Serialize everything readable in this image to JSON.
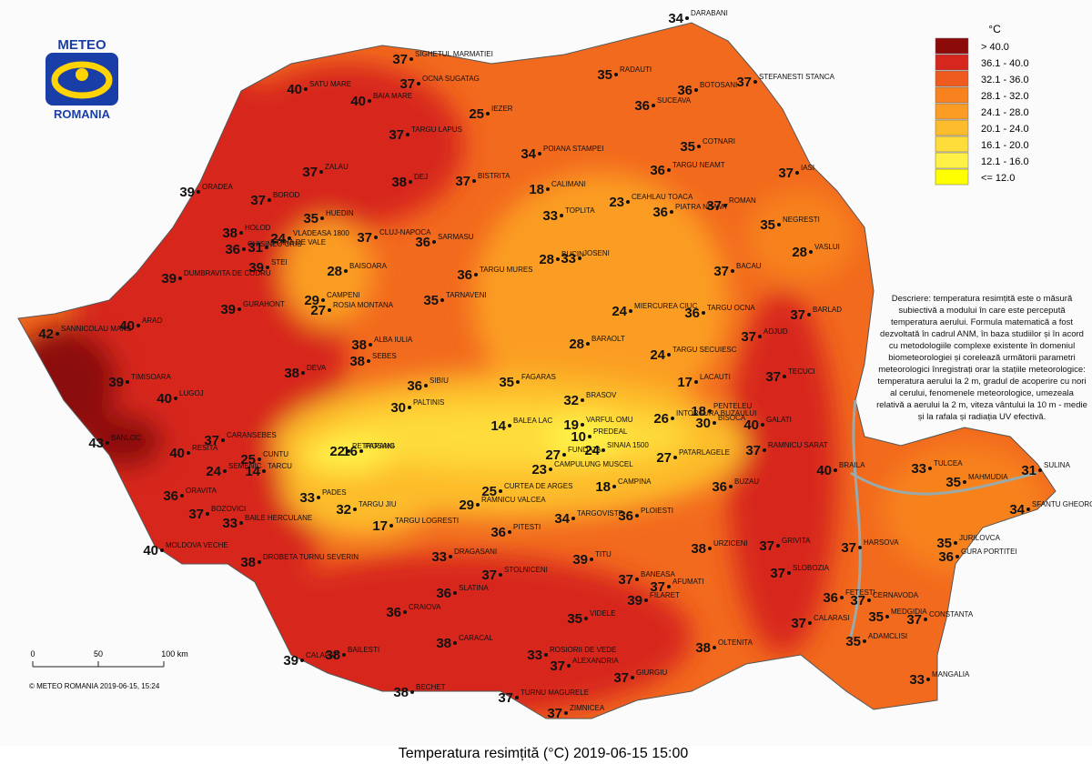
{
  "logo": {
    "line1": "METEO",
    "line2": "ROMANIA"
  },
  "legend": {
    "unit": "°C",
    "items": [
      {
        "label": "> 40.0",
        "color": "#8c0a0a"
      },
      {
        "label": "36.1 - 40.0",
        "color": "#d7261e"
      },
      {
        "label": "32.1 - 36.0",
        "color": "#ef5a1e"
      },
      {
        "label": "28.1 - 32.0",
        "color": "#f7821f"
      },
      {
        "label": "24.1 - 28.0",
        "color": "#fb9d24"
      },
      {
        "label": "20.1 - 24.0",
        "color": "#fdbc2c"
      },
      {
        "label": "16.1 - 20.0",
        "color": "#fedc3a"
      },
      {
        "label": "12.1 - 16.0",
        "color": "#fff046"
      },
      {
        "label": "<= 12.0",
        "color": "#ffff00"
      }
    ]
  },
  "stations": [
    {
      "name": "DARABANI",
      "value": 34
    },
    {
      "name": "SIGHETUL MARMATIEI",
      "value": 37
    },
    {
      "name": "STEFANESTI STANCA",
      "value": 37
    },
    {
      "name": "SATU MARE",
      "value": 40
    },
    {
      "name": "OCNA SUGATAG",
      "value": 37
    },
    {
      "name": "RADAUTI",
      "value": 35
    },
    {
      "name": "BAIA MARE",
      "value": 40
    },
    {
      "name": "BOTOSANI",
      "value": 36
    },
    {
      "name": "IEZER",
      "value": 25
    },
    {
      "name": "SUCEAVA",
      "value": 36
    },
    {
      "name": "TARGU LAPUS",
      "value": 37
    },
    {
      "name": "COTNARI",
      "value": 35
    },
    {
      "name": "POIANA STAMPEI",
      "value": 34
    },
    {
      "name": "ZALAU",
      "value": 37
    },
    {
      "name": "TARGU NEAMT",
      "value": 36
    },
    {
      "name": "IASI",
      "value": 37
    },
    {
      "name": "BISTRITA",
      "value": 37
    },
    {
      "name": "ORADEA",
      "value": 39
    },
    {
      "name": "DEJ",
      "value": 38
    },
    {
      "name": "CALIMANI",
      "value": 18
    },
    {
      "name": "BOROD",
      "value": 37
    },
    {
      "name": "ROMAN",
      "value": 37
    },
    {
      "name": "PIATRA NEAMT",
      "value": 36
    },
    {
      "name": "CEAHLAU TOACA",
      "value": 23
    },
    {
      "name": "VLADEASA 1800",
      "value": 24
    },
    {
      "name": "HUEDIN",
      "value": 35
    },
    {
      "name": "TOPLITA",
      "value": 33
    },
    {
      "name": "NEGRESTI",
      "value": 35
    },
    {
      "name": "HOLOD",
      "value": 38
    },
    {
      "name": "CLUJ-NAPOCA",
      "value": 37
    },
    {
      "name": "SARMASU",
      "value": 36
    },
    {
      "name": "STANA DE VALE",
      "value": 31
    },
    {
      "name": "BUCIN",
      "value": 28
    },
    {
      "name": "JOSENI",
      "value": 33
    },
    {
      "name": "VASLUI",
      "value": 28
    },
    {
      "name": "CHISINEU CRIS",
      "value": 36
    },
    {
      "name": "STEI",
      "value": 39
    },
    {
      "name": "DUMBRAVITA DE CODRU",
      "value": 39
    },
    {
      "name": "BAISOARA",
      "value": 28
    },
    {
      "name": "TARGU MURES",
      "value": 36
    },
    {
      "name": "BACAU",
      "value": 37
    },
    {
      "name": "CAMPENI",
      "value": 29
    },
    {
      "name": "ROSIA MONTANA",
      "value": 27
    },
    {
      "name": "GURAHONT",
      "value": 39
    },
    {
      "name": "TARNAVENI",
      "value": 35
    },
    {
      "name": "MIERCUREA CIUC",
      "value": 24
    },
    {
      "name": "TARGU OCNA",
      "value": 36
    },
    {
      "name": "BARLAD",
      "value": 37
    },
    {
      "name": "SANNICOLAU MARE",
      "value": 42
    },
    {
      "name": "ARAD",
      "value": 40
    },
    {
      "name": "ALBA IULIA",
      "value": 38
    },
    {
      "name": "SEBES",
      "value": 38
    },
    {
      "name": "BARAOLT",
      "value": 28
    },
    {
      "name": "TARGU SECUIESC",
      "value": 24
    },
    {
      "name": "ADJUD",
      "value": 37
    },
    {
      "name": "DEVA",
      "value": 38
    },
    {
      "name": "TIMISOARA",
      "value": 39
    },
    {
      "name": "SIBIU",
      "value": 36
    },
    {
      "name": "FAGARAS",
      "value": 35
    },
    {
      "name": "LACAUTI",
      "value": 17
    },
    {
      "name": "TECUCI",
      "value": 37
    },
    {
      "name": "LUGOJ",
      "value": 40
    },
    {
      "name": "PALTINIS",
      "value": 30
    },
    {
      "name": "BRASOV",
      "value": 32
    },
    {
      "name": "BALEA LAC",
      "value": 14
    },
    {
      "name": "INTORSURA BUZAULUI",
      "value": 26
    },
    {
      "name": "PENTELEU",
      "value": 18
    },
    {
      "name": "BISOCA",
      "value": 30
    },
    {
      "name": "VARFUL OMU",
      "value": 19
    },
    {
      "name": "GALATI",
      "value": 40
    },
    {
      "name": "PREDEAL",
      "value": 10
    },
    {
      "name": "FUNDATA",
      "value": 27
    },
    {
      "name": "SINAIA 1500",
      "value": 24
    },
    {
      "name": "BANLOC",
      "value": 43
    },
    {
      "name": "RESITA",
      "value": 40
    },
    {
      "name": "CARANSEBES",
      "value": 37
    },
    {
      "name": "PETROSANI",
      "value": 22
    },
    {
      "name": "PARANG",
      "value": 16
    },
    {
      "name": "CUNTU",
      "value": 25
    },
    {
      "name": "TARCU",
      "value": 14
    },
    {
      "name": "RAMNICU SARAT",
      "value": 37
    },
    {
      "name": "PATARLAGELE",
      "value": 27
    },
    {
      "name": "CAMPULUNG MUSCEL",
      "value": 23
    },
    {
      "name": "CAMPINA",
      "value": 18
    },
    {
      "name": "SEMENIC",
      "value": 24
    },
    {
      "name": "TULCEA",
      "value": 33
    },
    {
      "name": "SULINA",
      "value": 31
    },
    {
      "name": "MAHMUDIA",
      "value": 35
    },
    {
      "name": "BRAILA",
      "value": 40
    },
    {
      "name": "RAMNICU VALCEA",
      "value": 29
    },
    {
      "name": "CURTEA DE ARGES",
      "value": 25
    },
    {
      "name": "ORAVITA",
      "value": 36
    },
    {
      "name": "BUZAU",
      "value": 36
    },
    {
      "name": "SFANTU GHEORGHE",
      "value": 34
    },
    {
      "name": "PADES",
      "value": 33
    },
    {
      "name": "TARGU JIU",
      "value": 32
    },
    {
      "name": "BOZOVICI",
      "value": 37
    },
    {
      "name": "BAILE HERCULANE",
      "value": 33
    },
    {
      "name": "TARGU LOGRESTI",
      "value": 17
    },
    {
      "name": "DRAGASANI",
      "value": 33
    },
    {
      "name": "PLOIESTI",
      "value": 36
    },
    {
      "name": "TARGOVISTE",
      "value": 34
    },
    {
      "name": "PITESTI",
      "value": 36
    },
    {
      "name": "MOLDOVA VECHE",
      "value": 40
    },
    {
      "name": "DROBETA TURNU SEVERIN",
      "value": 38
    },
    {
      "name": "JURILOVCA",
      "value": 35
    },
    {
      "name": "GURA PORTITEI",
      "value": 36
    },
    {
      "name": "URZICENI",
      "value": 38
    },
    {
      "name": "GRIVITA",
      "value": 37
    },
    {
      "name": "HARSOVA",
      "value": 37
    },
    {
      "name": "TITU",
      "value": 39
    },
    {
      "name": "SLOBOZIA",
      "value": 37
    },
    {
      "name": "STOLNICENI",
      "value": 37
    },
    {
      "name": "BANEASA",
      "value": 37
    },
    {
      "name": "AFUMATI",
      "value": 37
    },
    {
      "name": "SLATINA",
      "value": 36
    },
    {
      "name": "FILARET",
      "value": 39
    },
    {
      "name": "FETESTI",
      "value": 36
    },
    {
      "name": "CERNAVODA",
      "value": 37
    },
    {
      "name": "CRAIOVA",
      "value": 36
    },
    {
      "name": "VIDELE",
      "value": 35
    },
    {
      "name": "MEDGIDIA",
      "value": 35
    },
    {
      "name": "CONSTANTA",
      "value": 37
    },
    {
      "name": "CALARASI",
      "value": 37
    },
    {
      "name": "ADAMCLISI",
      "value": 35
    },
    {
      "name": "CARACAL",
      "value": 38
    },
    {
      "name": "OLTENITA",
      "value": 38
    },
    {
      "name": "CALAFAT",
      "value": 39
    },
    {
      "name": "BAILESTI",
      "value": 38
    },
    {
      "name": "ALEXANDRIA",
      "value": 37
    },
    {
      "name": "GIURGIU",
      "value": 37
    },
    {
      "name": "MANGALIA",
      "value": 33
    },
    {
      "name": "BECHET",
      "value": 38
    },
    {
      "name": "TURNU MAGURELE",
      "value": 37
    },
    {
      "name": "ZIMNICEA",
      "value": 37
    },
    {
      "name": "ROSIORII DE VEDE",
      "value": 33
    }
  ],
  "description": "Descriere: temperatura resimțită este o măsură subiectivă a modului în care este percepută temperatura aerului. Formula matematică a fost dezvoltată în cadrul ANM, în baza studiilor și în acord cu metodologiile complexe existente în domeniul biometeorologiei și corelează următorii parametri meteorologici înregistrați orar la stațiile meteorologice: temperatura aerului la 2 m, gradul de acoperire cu nori al cerului, fenomenele meteorologice, umezeala relativă a aerului la 2 m, viteza vântului la 10 m - medie și la rafala și radiația UV efectivă.",
  "scale": {
    "labels": [
      "0",
      "50",
      "100 km"
    ]
  },
  "copyright": "© METEO ROMANIA 2019-06-15, 15:24",
  "title": "Temperatura resimțită (°C) 2019-06-15 15:00"
}
